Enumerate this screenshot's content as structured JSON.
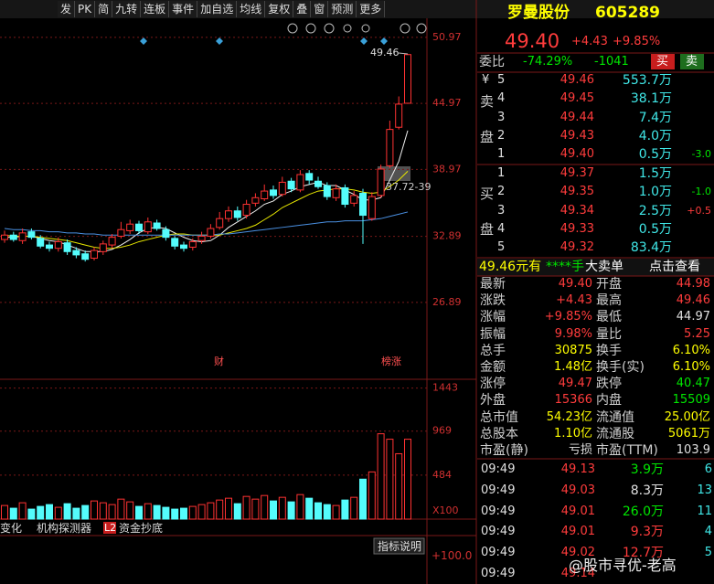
{
  "toolbar": {
    "buttons": [
      "发",
      "PK",
      "简",
      "九转",
      "连板",
      "事件",
      "加自选",
      "均线",
      "复权",
      "叠",
      "窗",
      "预测",
      "更多"
    ]
  },
  "chart_data": {
    "type": "candlestick",
    "ylim": [
      19.9,
      52.7
    ],
    "yticks": [
      50.97,
      44.97,
      38.97,
      32.89,
      26.89
    ],
    "grid": true,
    "up_color": "#ff3232",
    "down_color": "#54fcfc",
    "open": [
      32.6,
      33.0,
      32.5,
      33.3,
      32.7,
      32.1,
      31.8,
      32.3,
      31.6,
      31.3,
      30.9,
      31.5,
      32.1,
      32.9,
      33.4,
      34.0,
      33.3,
      34.1,
      33.5,
      32.7,
      32.1,
      31.9,
      32.5,
      32.9,
      33.7,
      34.5,
      35.2,
      34.8,
      35.9,
      36.3,
      37.1,
      36.7,
      37.9,
      37.1,
      38.6,
      37.9,
      37.5,
      36.4,
      37.3,
      35.9,
      36.8,
      34.5,
      36.6,
      39.3,
      42.8,
      44.98
    ],
    "high": [
      33.4,
      33.3,
      33.6,
      33.6,
      33.0,
      32.4,
      32.8,
      32.6,
      31.9,
      31.6,
      31.9,
      32.5,
      33.1,
      34.2,
      34.4,
      34.3,
      34.6,
      34.4,
      33.8,
      32.9,
      32.4,
      32.7,
      33.3,
      34.0,
      35.1,
      35.6,
      35.6,
      36.2,
      36.8,
      37.6,
      37.5,
      38.3,
      38.2,
      38.9,
      38.9,
      38.3,
      37.8,
      37.6,
      37.6,
      37.0,
      37.2,
      36.9,
      39.4,
      43.4,
      45.6,
      49.46
    ],
    "low": [
      32.3,
      32.4,
      32.2,
      32.6,
      31.8,
      31.5,
      31.5,
      31.2,
      30.9,
      30.6,
      30.7,
      31.2,
      31.8,
      32.7,
      33.1,
      33.1,
      33.1,
      33.4,
      32.5,
      31.7,
      31.5,
      31.6,
      32.2,
      32.7,
      33.5,
      34.2,
      34.3,
      34.5,
      35.6,
      36.1,
      36.3,
      36.5,
      36.9,
      36.9,
      37.6,
      37.2,
      36.2,
      36.1,
      35.5,
      35.6,
      32.2,
      34.3,
      36.4,
      39.1,
      42.6,
      44.97
    ],
    "close": [
      33.0,
      32.6,
      33.2,
      32.8,
      32.0,
      31.8,
      32.4,
      31.5,
      31.2,
      30.8,
      31.6,
      32.2,
      32.8,
      33.5,
      34.0,
      33.4,
      34.2,
      33.6,
      32.8,
      32.0,
      31.8,
      32.4,
      32.9,
      33.6,
      34.5,
      35.2,
      34.6,
      35.8,
      36.4,
      37.0,
      36.6,
      37.8,
      37.2,
      38.5,
      38.0,
      37.4,
      36.5,
      37.2,
      35.8,
      36.6,
      34.8,
      36.5,
      39.0,
      42.6,
      44.9,
      49.4
    ],
    "series": [
      {
        "color": "#f0f0f0",
        "values": [
          32.8,
          32.8,
          32.9,
          32.9,
          32.7,
          32.5,
          32.4,
          32.1,
          31.8,
          31.5,
          31.5,
          31.5,
          31.7,
          32.1,
          32.6,
          33.2,
          33.6,
          33.7,
          33.6,
          33.2,
          32.8,
          32.5,
          32.4,
          32.5,
          33.0,
          33.7,
          34.2,
          34.7,
          35.2,
          35.8,
          36.1,
          36.7,
          37.0,
          37.4,
          37.6,
          37.8,
          37.5,
          37.5,
          37.1,
          36.7,
          36.2,
          36.2,
          36.4,
          38.0,
          39.7,
          42.5
        ]
      },
      {
        "color": "#e8e800",
        "values": [
          33.0,
          32.9,
          32.9,
          32.9,
          32.8,
          32.7,
          32.6,
          32.5,
          32.3,
          32.1,
          31.9,
          31.8,
          31.8,
          31.9,
          32.1,
          32.4,
          32.6,
          32.8,
          33.0,
          33.1,
          33.1,
          33.0,
          33.0,
          33.0,
          33.0,
          33.2,
          33.4,
          33.6,
          33.9,
          34.4,
          34.9,
          35.5,
          35.9,
          36.3,
          36.7,
          37.0,
          37.1,
          37.2,
          37.2,
          37.1,
          36.9,
          36.8,
          36.9,
          37.4,
          38.0,
          38.8
        ]
      },
      {
        "color": "#4a90e2",
        "values": [
          33.6,
          33.5,
          33.5,
          33.4,
          33.4,
          33.3,
          33.3,
          33.2,
          33.2,
          33.1,
          33.1,
          33.0,
          33.0,
          33.0,
          33.0,
          33.0,
          33.0,
          33.0,
          33.0,
          33.0,
          33.0,
          33.0,
          33.0,
          33.0,
          33.1,
          33.1,
          33.2,
          33.3,
          33.4,
          33.5,
          33.6,
          33.7,
          33.8,
          33.9,
          34.0,
          34.1,
          34.2,
          34.2,
          34.3,
          34.3,
          34.3,
          34.4,
          34.5,
          34.7,
          34.9,
          35.1
        ]
      }
    ],
    "annotations": {
      "high_label": "49.46",
      "range_label": "37.72-39",
      "event_1": "财",
      "event_2": "榜涨"
    },
    "volume": {
      "ylim": [
        0,
        1540
      ],
      "yticks": [
        1443,
        969,
        484
      ],
      "unit": "X100",
      "values": [
        150,
        120,
        180,
        110,
        140,
        160,
        130,
        170,
        120,
        150,
        200,
        180,
        160,
        220,
        190,
        140,
        170,
        150,
        130,
        110,
        120,
        140,
        160,
        180,
        210,
        230,
        170,
        250,
        220,
        260,
        200,
        240,
        190,
        270,
        230,
        180,
        160,
        150,
        210,
        240,
        440,
        520,
        940,
        880,
        720,
        880
      ]
    }
  },
  "indicator_tabs": {
    "tabs": [
      "变化",
      "机构探测器",
      "资金抄底"
    ],
    "badge": "L2",
    "help": "指标说明",
    "level": "+100.0"
  },
  "quote": {
    "name": "罗曼股份",
    "code": "605289",
    "price": "49.40",
    "change": "+4.43",
    "change_pct": "+9.85%",
    "weibi_label": "委比",
    "weibi": "-74.29%",
    "weicha": "-1041",
    "buy_btn": "买",
    "sell_btn": "卖",
    "sell_side": [
      "卖",
      "盘"
    ],
    "buy_side": [
      "买",
      "盘"
    ],
    "currency": "¥",
    "asks": [
      {
        "level": "5",
        "price": "49.46",
        "volume": "553.7万"
      },
      {
        "level": "4",
        "price": "49.45",
        "volume": "38.1万"
      },
      {
        "level": "3",
        "price": "49.44",
        "volume": "7.4万"
      },
      {
        "level": "2",
        "price": "49.43",
        "volume": "4.0万"
      },
      {
        "level": "1",
        "price": "49.40",
        "volume": "0.5万",
        "delta": "-3.0"
      }
    ],
    "bids": [
      {
        "level": "1",
        "price": "49.37",
        "volume": "1.5万"
      },
      {
        "level": "2",
        "price": "49.35",
        "volume": "1.0万",
        "delta": "-1.0"
      },
      {
        "level": "3",
        "price": "49.34",
        "volume": "2.5万",
        "delta": "+0.5"
      },
      {
        "level": "4",
        "price": "49.33",
        "volume": "0.5万"
      },
      {
        "level": "5",
        "price": "49.32",
        "volume": "83.4万"
      }
    ],
    "banner": [
      "49.46元有",
      "****手",
      "大卖单",
      "点击查看"
    ],
    "stats": [
      [
        "最新",
        "49.40",
        "开盘",
        "44.98"
      ],
      [
        "涨跌",
        "+4.43",
        "最高",
        "49.46"
      ],
      [
        "涨幅",
        "+9.85%",
        "最低",
        "44.97"
      ],
      [
        "振幅",
        "9.98%",
        "量比",
        "5.25"
      ],
      [
        "总手",
        "30875",
        "换手",
        "6.10%"
      ],
      [
        "金额",
        "1.48亿",
        "换手(实)",
        "6.10%"
      ],
      [
        "涨停",
        "49.47",
        "跌停",
        "40.47"
      ],
      [
        "外盘",
        "15366",
        "内盘",
        "15509"
      ],
      [
        "总市值",
        "54.23亿",
        "流通值",
        "25.00亿"
      ],
      [
        "总股本",
        "1.10亿",
        "流通股",
        "5061万"
      ],
      [
        "市盈(静)",
        "亏损",
        "市盈(TTM)",
        "103.9"
      ]
    ],
    "trades": [
      [
        "09:49",
        "49.13",
        "3.9万",
        "6"
      ],
      [
        "09:49",
        "49.03",
        "8.3万",
        "13"
      ],
      [
        "09:49",
        "49.01",
        "26.0万",
        "11"
      ],
      [
        "09:49",
        "49.01",
        "9.3万",
        "4"
      ],
      [
        "09:49",
        "49.02",
        "12.7万",
        "5"
      ],
      [
        "09:49",
        "49.14"
      ]
    ]
  },
  "watermark": "@股市寻优-老高"
}
